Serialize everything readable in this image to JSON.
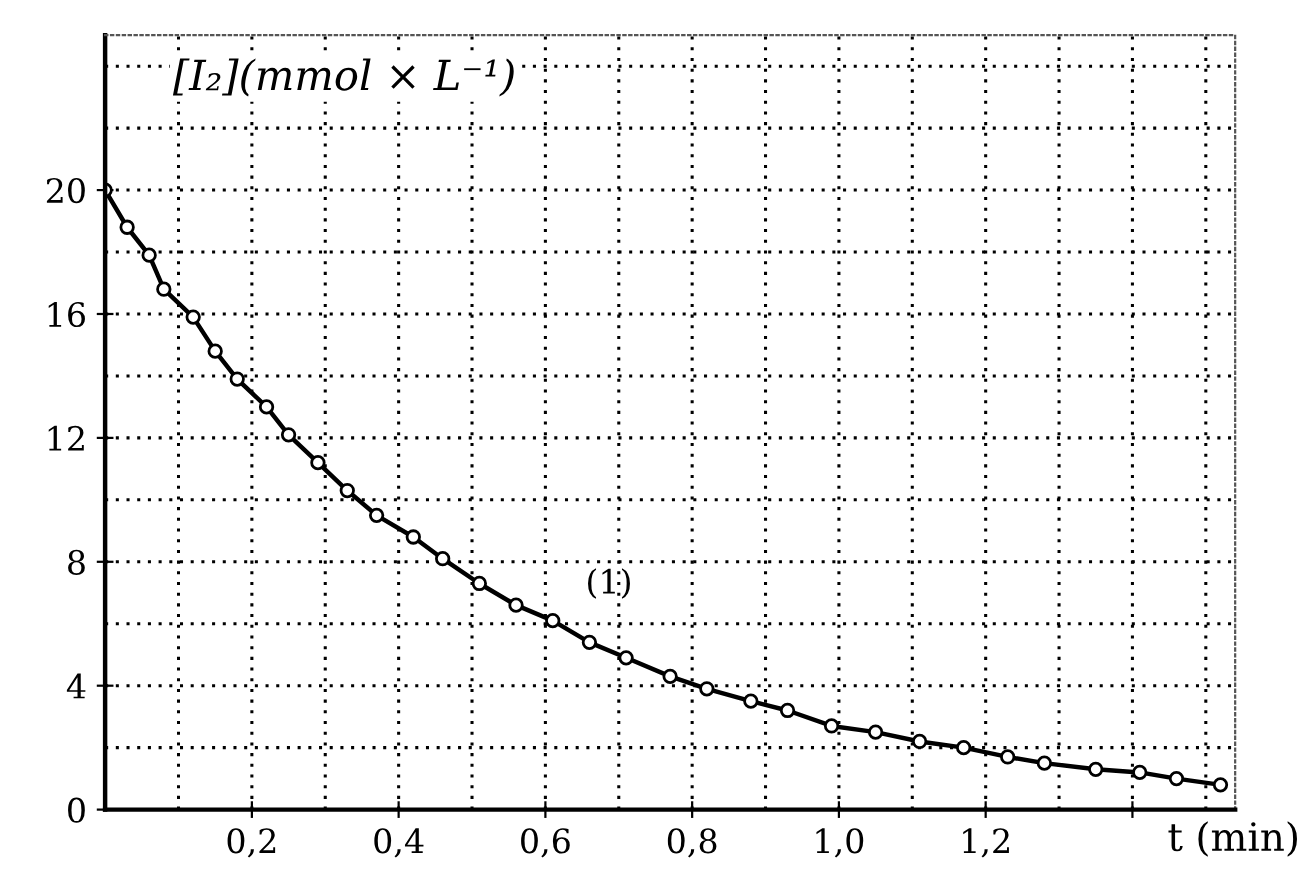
{
  "chart_data": {
    "type": "line",
    "xlabel": "t (min)",
    "ylabel": "[I₂](mmol × L⁻¹)",
    "xlim": [
      0,
      1.54
    ],
    "ylim": [
      0,
      25
    ],
    "xticks": [
      {
        "value": 0.2,
        "label": "0,2"
      },
      {
        "value": 0.4,
        "label": "0,4"
      },
      {
        "value": 0.6,
        "label": "0,6"
      },
      {
        "value": 0.8,
        "label": "0,8"
      },
      {
        "value": 1.0,
        "label": "1,0"
      },
      {
        "value": 1.2,
        "label": "1,2"
      },
      {
        "value": 1.4,
        "label": null
      }
    ],
    "yticks": [
      0,
      4,
      8,
      12,
      16,
      20
    ],
    "grid": true,
    "marker": "circle",
    "line_style": "solid",
    "annotations": [
      "(1)"
    ],
    "series": [
      {
        "color": "#000000",
        "x": [
          0,
          0.03,
          0.06,
          0.08,
          0.12,
          0.15,
          0.18,
          0.22,
          0.25,
          0.29,
          0.33,
          0.37,
          0.42,
          0.46,
          0.51,
          0.56,
          0.61,
          0.66,
          0.71,
          0.77,
          0.82,
          0.88,
          0.93,
          0.99,
          1.05,
          1.11,
          1.17,
          1.23,
          1.28,
          1.35,
          1.41,
          1.46,
          1.52
        ],
        "values": [
          20.0,
          18.8,
          17.9,
          16.8,
          15.9,
          14.8,
          13.9,
          13.0,
          12.1,
          11.2,
          10.3,
          9.5,
          8.8,
          8.1,
          7.3,
          6.6,
          6.1,
          5.4,
          4.9,
          4.3,
          3.9,
          3.5,
          3.2,
          2.7,
          2.5,
          2.2,
          2.0,
          1.7,
          1.5,
          1.3,
          1.2,
          1.0,
          0.8
        ]
      }
    ]
  }
}
